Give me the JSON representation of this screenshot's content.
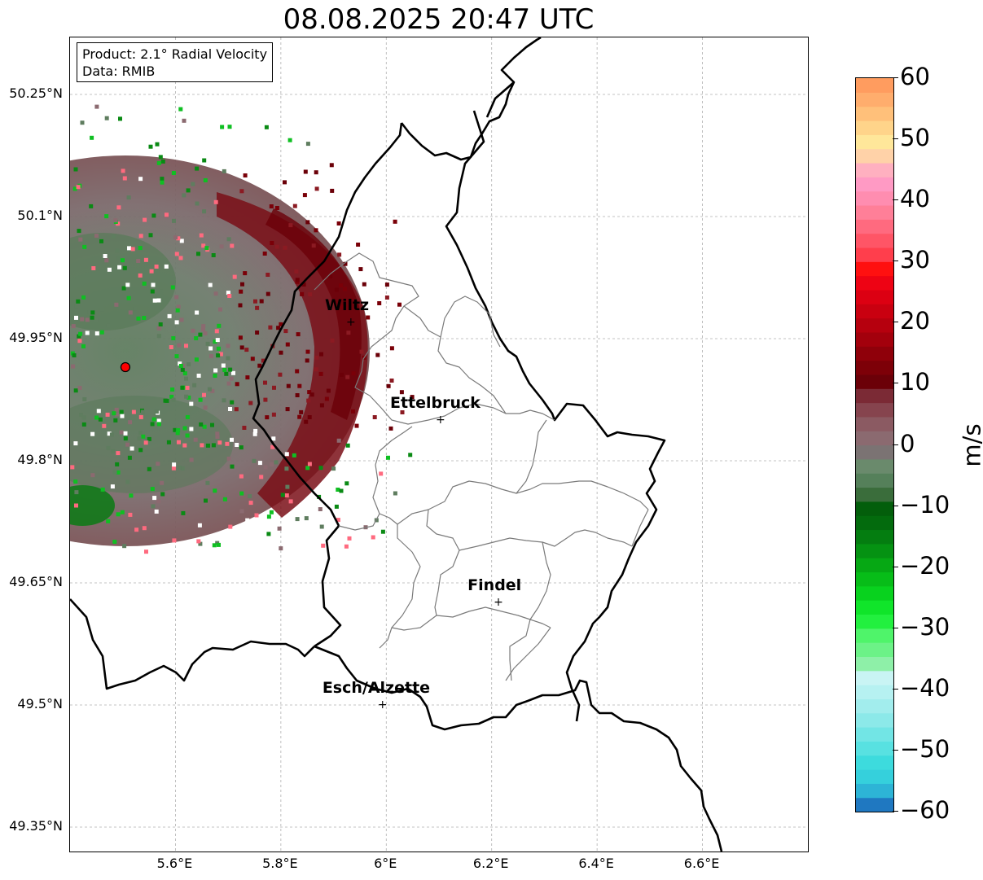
{
  "title": "08.08.2025 20:47 UTC",
  "info": {
    "product": "Product: 2.1° Radial Velocity",
    "data": "Data: RMIB"
  },
  "map": {
    "lon_range": [
      5.4,
      6.8
    ],
    "lat_range": [
      49.32,
      50.32
    ],
    "grid": true,
    "lat_ticks": [
      {
        "value": 50.25,
        "label": "50.25°N"
      },
      {
        "value": 50.1,
        "label": "50.1°N"
      },
      {
        "value": 49.95,
        "label": "49.95°N"
      },
      {
        "value": 49.8,
        "label": "49.8°N"
      },
      {
        "value": 49.65,
        "label": "49.65°N"
      },
      {
        "value": 49.5,
        "label": "49.5°N"
      },
      {
        "value": 49.35,
        "label": "49.35°N"
      }
    ],
    "lon_ticks": [
      {
        "value": 5.6,
        "label": "5.6°E"
      },
      {
        "value": 5.8,
        "label": "5.8°E"
      },
      {
        "value": 6.0,
        "label": "6°E"
      },
      {
        "value": 6.2,
        "label": "6.2°E"
      },
      {
        "value": 6.4,
        "label": "6.4°E"
      },
      {
        "value": 6.6,
        "label": "6.6°E"
      }
    ],
    "radar_site": {
      "lon": 5.505,
      "lat": 49.915
    },
    "cities": [
      {
        "name": "Wiltz",
        "lon": 5.93,
        "lat": 49.97
      },
      {
        "name": "Ettelbruck",
        "lon": 6.1,
        "lat": 49.85
      },
      {
        "name": "Findel",
        "lon": 6.21,
        "lat": 49.626
      },
      {
        "name": "Esch/Alzette",
        "lon": 5.99,
        "lat": 49.5
      }
    ]
  },
  "colorbar": {
    "label": "m/s",
    "min": -60,
    "max": 60,
    "ticks": [
      {
        "value": 60,
        "label": "60"
      },
      {
        "value": 50,
        "label": "50"
      },
      {
        "value": 40,
        "label": "40"
      },
      {
        "value": 30,
        "label": "30"
      },
      {
        "value": 20,
        "label": "20"
      },
      {
        "value": 10,
        "label": "10"
      },
      {
        "value": 0,
        "label": "0"
      },
      {
        "value": -10,
        "label": "−10"
      },
      {
        "value": -20,
        "label": "−20"
      },
      {
        "value": -30,
        "label": "−30"
      },
      {
        "value": -40,
        "label": "−40"
      },
      {
        "value": -50,
        "label": "−50"
      },
      {
        "value": -60,
        "label": "−60"
      }
    ],
    "colors": [
      "#1f78c1",
      "#2db4d6",
      "#35d0dc",
      "#3ddbdd",
      "#58e1e1",
      "#72e5e5",
      "#8ce9e9",
      "#a2eded",
      "#b6f1f1",
      "#c9f4f4",
      "#8ef0a8",
      "#6cf287",
      "#4ff46a",
      "#22f03f",
      "#10e52a",
      "#08d21e",
      "#07bd18",
      "#06a814",
      "#059212",
      "#047d10",
      "#036b0d",
      "#035e0b",
      "#3a6d3b",
      "#55805a",
      "#6a8a6c",
      "#7b7373",
      "#8b6a70",
      "#8b5a62",
      "#86444e",
      "#7b2a35",
      "#6b0008",
      "#7d0008",
      "#8f000a",
      "#a3000c",
      "#b6000e",
      "#c90010",
      "#dc0012",
      "#ee0314",
      "#ff1010",
      "#ff3e4c",
      "#ff5566",
      "#ff6a7f",
      "#ff7f98",
      "#ff8db0",
      "#ff9ac4",
      "#ffb0c0",
      "#ffd2a8",
      "#ffe79a",
      "#ffd48a",
      "#ffc07a",
      "#ffad6d",
      "#ff9c5f"
    ]
  }
}
